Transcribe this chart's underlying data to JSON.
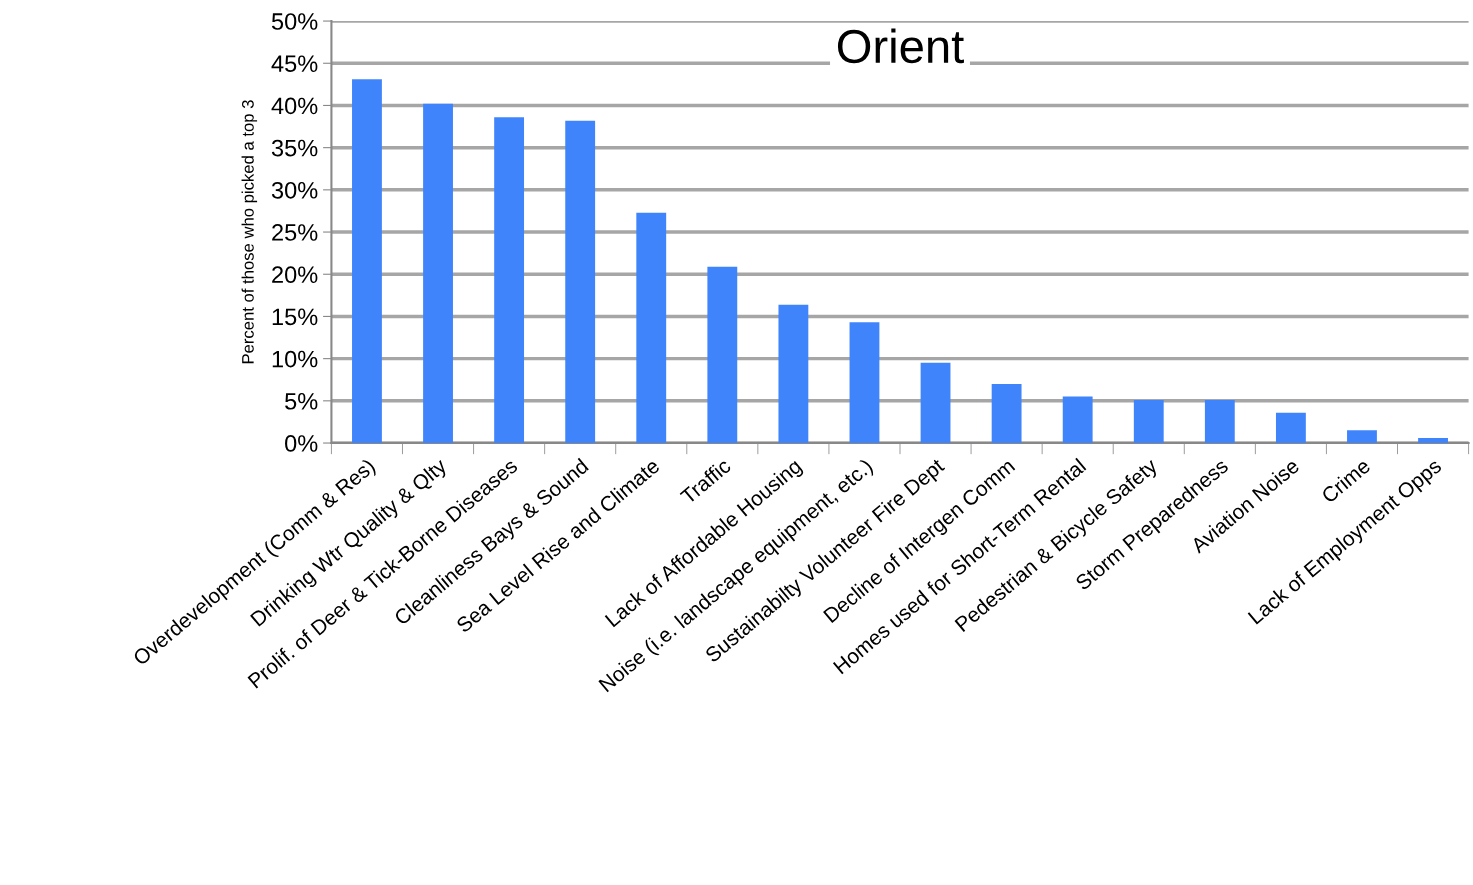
{
  "chart_data": {
    "type": "bar",
    "title": "Orient",
    "ylabel": "Percent of those who picked a top 3",
    "categories": [
      "Overdevelopment (Comm & Res)",
      "Drinking Wtr Quality & Qlty",
      "Prolif. of Deer & Tick-Borne Diseases",
      "Cleanliness Bays & Sound",
      "Sea Level Rise and Climate",
      "Traffic",
      "Lack of Affordable Housing",
      "Noise (i.e. landscape equipment, etc.)",
      "Sustainabilty Volunteer Fire Dept",
      "Decline of Intergen Comm",
      "Homes used for Short-Term Rental",
      "Pedestrian & Bicycle Safety",
      "Storm Preparedness",
      "Aviation Noise",
      "Crime",
      "Lack of Employment Opps"
    ],
    "values": [
      43.1,
      40.2,
      38.6,
      38.2,
      27.3,
      20.9,
      16.4,
      14.3,
      9.5,
      7.0,
      5.5,
      5.1,
      5.1,
      3.6,
      1.5,
      0.6
    ],
    "color": "#3f84fb",
    "ylim": [
      0,
      50
    ],
    "yticks": [
      {
        "value": 0,
        "label": "0%"
      },
      {
        "value": 5,
        "label": "5%"
      },
      {
        "value": 10,
        "label": "10%"
      },
      {
        "value": 15,
        "label": "15%"
      },
      {
        "value": 20,
        "label": "20%"
      },
      {
        "value": 25,
        "label": "25%"
      },
      {
        "value": 30,
        "label": "30%"
      },
      {
        "value": 35,
        "label": "35%"
      },
      {
        "value": 40,
        "label": "40%"
      },
      {
        "value": 45,
        "label": "45%"
      },
      {
        "value": 50,
        "label": "50%"
      }
    ],
    "grid": "y",
    "legend": false
  }
}
